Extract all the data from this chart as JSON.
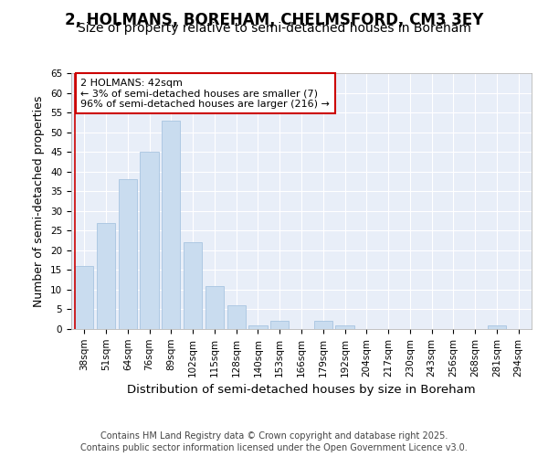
{
  "title1": "2, HOLMANS, BOREHAM, CHELMSFORD, CM3 3EY",
  "title2": "Size of property relative to semi-detached houses in Boreham",
  "xlabel": "Distribution of semi-detached houses by size in Boreham",
  "ylabel": "Number of semi-detached properties",
  "categories": [
    "38sqm",
    "51sqm",
    "64sqm",
    "76sqm",
    "89sqm",
    "102sqm",
    "115sqm",
    "128sqm",
    "140sqm",
    "153sqm",
    "166sqm",
    "179sqm",
    "192sqm",
    "204sqm",
    "217sqm",
    "230sqm",
    "243sqm",
    "256sqm",
    "268sqm",
    "281sqm",
    "294sqm"
  ],
  "values": [
    16,
    27,
    38,
    45,
    53,
    22,
    11,
    6,
    1,
    2,
    0,
    2,
    1,
    0,
    0,
    0,
    0,
    0,
    0,
    1,
    0
  ],
  "bar_color": "#c9dcef",
  "bar_edge_color": "#a8c4e0",
  "highlight_bar_index": 0,
  "highlight_line_color": "#cc0000",
  "annotation_text": "2 HOLMANS: 42sqm\n← 3% of semi-detached houses are smaller (7)\n96% of semi-detached houses are larger (216) →",
  "annotation_box_facecolor": "#ffffff",
  "annotation_box_edgecolor": "#cc0000",
  "ylim": [
    0,
    65
  ],
  "yticks": [
    0,
    5,
    10,
    15,
    20,
    25,
    30,
    35,
    40,
    45,
    50,
    55,
    60,
    65
  ],
  "background_color": "#e8eef8",
  "grid_color": "#ffffff",
  "footer_text": "Contains HM Land Registry data © Crown copyright and database right 2025.\nContains public sector information licensed under the Open Government Licence v3.0.",
  "title_fontsize": 12,
  "subtitle_fontsize": 10,
  "axis_label_fontsize": 9,
  "tick_fontsize": 7.5,
  "annotation_fontsize": 8,
  "footer_fontsize": 7
}
